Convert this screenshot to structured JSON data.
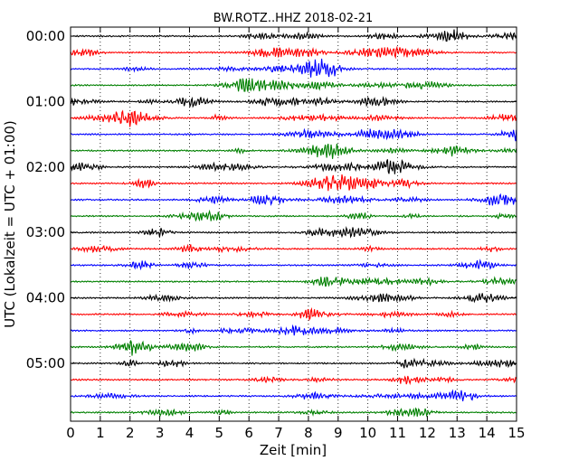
{
  "chart_data": {
    "type": "line",
    "subtype": "dayplot-seismogram",
    "title": "BW.ROTZ..HHZ 2018-02-21",
    "xlabel": "Zeit  [min]",
    "ylabel": "UTC (Lokalzeit = UTC + 01:00)",
    "xlim": [
      0,
      15
    ],
    "x_ticks": [
      0,
      1,
      2,
      3,
      4,
      5,
      6,
      7,
      8,
      9,
      10,
      11,
      12,
      13,
      14,
      15
    ],
    "x_tick_labels": [
      "0",
      "1",
      "2",
      "3",
      "4",
      "5",
      "6",
      "7",
      "8",
      "9",
      "10",
      "11",
      "12",
      "13",
      "14",
      "15"
    ],
    "y_tick_labels": [
      "00:00",
      "01:00",
      "02:00",
      "03:00",
      "04:00",
      "05:00"
    ],
    "traces_per_hour": 4,
    "trace_count": 24,
    "trace_colors": [
      "#000000",
      "#ff0000",
      "#0000ff",
      "#008000"
    ],
    "grid": {
      "vertical": true,
      "style": "dotted"
    }
  }
}
